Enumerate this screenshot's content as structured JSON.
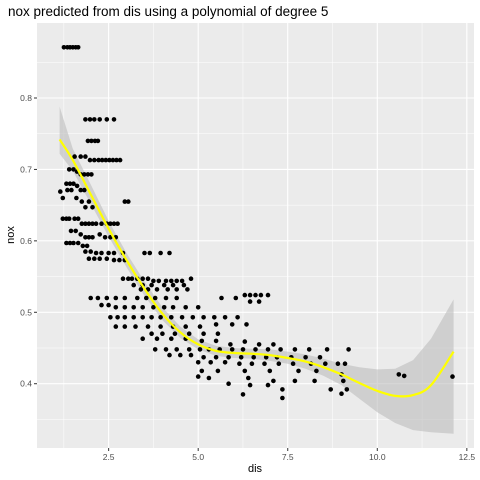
{
  "chart_data": {
    "type": "scatter",
    "title": "nox predicted from dis using a polynomial of degree 5",
    "xlabel": "dis",
    "ylabel": "nox",
    "xlim": [
      0.5,
      12.7
    ],
    "ylim": [
      0.31,
      0.905
    ],
    "x_ticks": [
      2.5,
      5.0,
      7.5,
      10.0,
      12.5
    ],
    "x_tick_labels": [
      "2.5",
      "5.0",
      "7.5",
      "10.0",
      "12.5"
    ],
    "y_ticks": [
      0.4,
      0.5,
      0.6,
      0.7,
      0.8
    ],
    "y_tick_labels": [
      "0.4",
      "0.5",
      "0.6",
      "0.7",
      "0.8"
    ],
    "grid": true,
    "colors": {
      "panel": "#ebebeb",
      "grid_major": "#ffffff",
      "points": "#000000",
      "fit_line": "#ffff00",
      "ribbon": "#bdbdbd"
    },
    "series": [
      {
        "kind": "points",
        "values": [
          [
            1.25,
            0.871
          ],
          [
            1.35,
            0.871
          ],
          [
            1.42,
            0.871
          ],
          [
            1.5,
            0.871
          ],
          [
            1.58,
            0.871
          ],
          [
            1.65,
            0.871
          ],
          [
            1.85,
            0.77
          ],
          [
            1.98,
            0.77
          ],
          [
            2.1,
            0.77
          ],
          [
            2.25,
            0.77
          ],
          [
            2.45,
            0.77
          ],
          [
            2.65,
            0.77
          ],
          [
            1.92,
            0.74
          ],
          [
            2.02,
            0.74
          ],
          [
            2.12,
            0.74
          ],
          [
            2.2,
            0.74
          ],
          [
            1.55,
            0.718
          ],
          [
            1.72,
            0.718
          ],
          [
            1.85,
            0.718
          ],
          [
            1.98,
            0.713
          ],
          [
            2.1,
            0.713
          ],
          [
            2.22,
            0.713
          ],
          [
            2.32,
            0.713
          ],
          [
            2.42,
            0.713
          ],
          [
            2.52,
            0.713
          ],
          [
            2.62,
            0.713
          ],
          [
            2.72,
            0.713
          ],
          [
            2.82,
            0.713
          ],
          [
            1.4,
            0.7
          ],
          [
            1.52,
            0.7
          ],
          [
            1.62,
            0.697
          ],
          [
            1.72,
            0.693
          ],
          [
            1.82,
            0.693
          ],
          [
            1.92,
            0.693
          ],
          [
            2.02,
            0.693
          ],
          [
            1.32,
            0.68
          ],
          [
            1.42,
            0.68
          ],
          [
            1.52,
            0.68
          ],
          [
            1.62,
            0.677
          ],
          [
            1.72,
            0.671
          ],
          [
            1.82,
            0.671
          ],
          [
            1.15,
            0.669
          ],
          [
            1.22,
            0.66
          ],
          [
            1.35,
            0.671
          ],
          [
            1.46,
            0.671
          ],
          [
            1.6,
            0.66
          ],
          [
            1.75,
            0.655
          ],
          [
            1.85,
            0.647
          ],
          [
            1.95,
            0.655
          ],
          [
            2.05,
            0.647
          ],
          [
            2.95,
            0.655
          ],
          [
            3.05,
            0.655
          ],
          [
            1.22,
            0.631
          ],
          [
            1.32,
            0.631
          ],
          [
            1.4,
            0.631
          ],
          [
            1.55,
            0.631
          ],
          [
            1.65,
            0.631
          ],
          [
            1.75,
            0.624
          ],
          [
            1.85,
            0.624
          ],
          [
            1.95,
            0.624
          ],
          [
            2.05,
            0.624
          ],
          [
            2.15,
            0.624
          ],
          [
            2.3,
            0.624
          ],
          [
            2.45,
            0.624
          ],
          [
            2.55,
            0.624
          ],
          [
            2.65,
            0.624
          ],
          [
            2.75,
            0.624
          ],
          [
            1.45,
            0.614
          ],
          [
            1.58,
            0.614
          ],
          [
            1.72,
            0.609
          ],
          [
            1.85,
            0.605
          ],
          [
            1.95,
            0.605
          ],
          [
            2.05,
            0.605
          ],
          [
            2.25,
            0.609
          ],
          [
            2.4,
            0.605
          ],
          [
            2.55,
            0.605
          ],
          [
            2.7,
            0.605
          ],
          [
            1.32,
            0.597
          ],
          [
            1.42,
            0.597
          ],
          [
            1.52,
            0.597
          ],
          [
            1.65,
            0.597
          ],
          [
            1.78,
            0.593
          ],
          [
            1.9,
            0.593
          ],
          [
            1.85,
            0.585
          ],
          [
            2.0,
            0.585
          ],
          [
            2.15,
            0.583
          ],
          [
            2.3,
            0.583
          ],
          [
            2.5,
            0.583
          ],
          [
            2.65,
            0.583
          ],
          [
            2.9,
            0.583
          ],
          [
            1.95,
            0.575
          ],
          [
            2.1,
            0.575
          ],
          [
            2.25,
            0.575
          ],
          [
            2.45,
            0.575
          ],
          [
            2.65,
            0.573
          ],
          [
            2.8,
            0.573
          ],
          [
            2.95,
            0.573
          ],
          [
            3.5,
            0.583
          ],
          [
            3.65,
            0.583
          ],
          [
            3.95,
            0.583
          ],
          [
            4.2,
            0.583
          ],
          [
            2.9,
            0.547
          ],
          [
            3.05,
            0.547
          ],
          [
            3.15,
            0.547
          ],
          [
            3.3,
            0.547
          ],
          [
            3.45,
            0.547
          ],
          [
            3.6,
            0.547
          ],
          [
            3.75,
            0.544
          ],
          [
            3.9,
            0.544
          ],
          [
            4.1,
            0.544
          ],
          [
            4.25,
            0.544
          ],
          [
            4.4,
            0.544
          ],
          [
            4.55,
            0.544
          ],
          [
            4.8,
            0.547
          ],
          [
            3.2,
            0.538
          ],
          [
            3.45,
            0.538
          ],
          [
            3.7,
            0.538
          ],
          [
            4.05,
            0.538
          ],
          [
            4.3,
            0.538
          ],
          [
            4.6,
            0.538
          ],
          [
            3.4,
            0.532
          ],
          [
            3.6,
            0.532
          ],
          [
            3.85,
            0.532
          ],
          [
            4.15,
            0.532
          ],
          [
            4.4,
            0.532
          ],
          [
            4.7,
            0.532
          ],
          [
            2.0,
            0.52
          ],
          [
            2.2,
            0.52
          ],
          [
            2.45,
            0.52
          ],
          [
            2.7,
            0.52
          ],
          [
            2.95,
            0.52
          ],
          [
            3.3,
            0.52
          ],
          [
            3.55,
            0.52
          ],
          [
            3.8,
            0.52
          ],
          [
            4.1,
            0.52
          ],
          [
            4.4,
            0.52
          ],
          [
            6.3,
            0.524
          ],
          [
            6.45,
            0.524
          ],
          [
            6.6,
            0.524
          ],
          [
            6.75,
            0.524
          ],
          [
            6.95,
            0.524
          ],
          [
            5.65,
            0.52
          ],
          [
            6.05,
            0.52
          ],
          [
            6.45,
            0.515
          ],
          [
            6.7,
            0.515
          ],
          [
            2.3,
            0.51
          ],
          [
            2.5,
            0.51
          ],
          [
            2.7,
            0.507
          ],
          [
            2.95,
            0.507
          ],
          [
            3.2,
            0.507
          ],
          [
            3.45,
            0.507
          ],
          [
            3.75,
            0.507
          ],
          [
            4.05,
            0.507
          ],
          [
            4.3,
            0.507
          ],
          [
            4.65,
            0.507
          ],
          [
            5.0,
            0.507
          ],
          [
            2.55,
            0.493
          ],
          [
            2.75,
            0.493
          ],
          [
            2.95,
            0.493
          ],
          [
            3.2,
            0.493
          ],
          [
            3.45,
            0.493
          ],
          [
            3.7,
            0.493
          ],
          [
            3.95,
            0.493
          ],
          [
            4.25,
            0.493
          ],
          [
            4.55,
            0.493
          ],
          [
            4.85,
            0.493
          ],
          [
            5.15,
            0.493
          ],
          [
            5.45,
            0.493
          ],
          [
            5.75,
            0.493
          ],
          [
            6.1,
            0.493
          ],
          [
            2.7,
            0.48
          ],
          [
            2.95,
            0.48
          ],
          [
            3.25,
            0.48
          ],
          [
            3.6,
            0.48
          ],
          [
            3.95,
            0.48
          ],
          [
            4.3,
            0.48
          ],
          [
            4.65,
            0.48
          ],
          [
            5.05,
            0.48
          ],
          [
            5.5,
            0.483
          ],
          [
            5.95,
            0.483
          ],
          [
            6.35,
            0.483
          ],
          [
            3.7,
            0.47
          ],
          [
            4.0,
            0.47
          ],
          [
            4.35,
            0.47
          ],
          [
            4.75,
            0.47
          ],
          [
            5.15,
            0.47
          ],
          [
            5.55,
            0.47
          ],
          [
            3.45,
            0.463
          ],
          [
            3.85,
            0.463
          ],
          [
            4.25,
            0.463
          ],
          [
            4.65,
            0.463
          ],
          [
            5.1,
            0.46
          ],
          [
            5.5,
            0.46
          ],
          [
            5.9,
            0.455
          ],
          [
            6.3,
            0.459
          ],
          [
            6.7,
            0.455
          ],
          [
            7.1,
            0.455
          ],
          [
            3.8,
            0.448
          ],
          [
            4.1,
            0.448
          ],
          [
            4.4,
            0.448
          ],
          [
            4.75,
            0.448
          ],
          [
            5.05,
            0.448
          ],
          [
            5.3,
            0.448
          ],
          [
            5.6,
            0.448
          ],
          [
            5.95,
            0.448
          ],
          [
            6.25,
            0.448
          ],
          [
            6.6,
            0.448
          ],
          [
            6.95,
            0.448
          ],
          [
            7.3,
            0.448
          ],
          [
            7.7,
            0.448
          ],
          [
            8.1,
            0.448
          ],
          [
            8.6,
            0.448
          ],
          [
            9.2,
            0.448
          ],
          [
            4.2,
            0.44
          ],
          [
            4.5,
            0.44
          ],
          [
            4.8,
            0.44
          ],
          [
            5.15,
            0.437
          ],
          [
            5.5,
            0.437
          ],
          [
            5.85,
            0.437
          ],
          [
            6.2,
            0.437
          ],
          [
            6.55,
            0.437
          ],
          [
            6.9,
            0.437
          ],
          [
            7.2,
            0.437
          ],
          [
            7.6,
            0.437
          ],
          [
            8.0,
            0.437
          ],
          [
            8.4,
            0.437
          ],
          [
            5.0,
            0.43
          ],
          [
            5.35,
            0.43
          ],
          [
            5.75,
            0.43
          ],
          [
            6.15,
            0.428
          ],
          [
            6.5,
            0.428
          ],
          [
            6.85,
            0.428
          ],
          [
            7.25,
            0.428
          ],
          [
            7.65,
            0.428
          ],
          [
            8.15,
            0.428
          ],
          [
            8.55,
            0.428
          ],
          [
            8.9,
            0.428
          ],
          [
            9.1,
            0.428
          ],
          [
            5.1,
            0.418
          ],
          [
            5.55,
            0.418
          ],
          [
            6.3,
            0.418
          ],
          [
            7.0,
            0.418
          ],
          [
            7.8,
            0.418
          ],
          [
            8.3,
            0.418
          ],
          [
            9.0,
            0.413
          ],
          [
            5.0,
            0.41
          ],
          [
            5.3,
            0.408
          ],
          [
            6.4,
            0.408
          ],
          [
            7.1,
            0.404
          ],
          [
            7.7,
            0.404
          ],
          [
            8.25,
            0.404
          ],
          [
            9.05,
            0.404
          ],
          [
            5.85,
            0.4
          ],
          [
            6.45,
            0.398
          ],
          [
            6.95,
            0.398
          ],
          [
            7.35,
            0.392
          ],
          [
            8.7,
            0.392
          ],
          [
            6.25,
            0.385
          ],
          [
            7.35,
            0.38
          ],
          [
            9.0,
            0.386
          ],
          [
            9.15,
            0.392
          ],
          [
            10.6,
            0.413
          ],
          [
            10.75,
            0.411
          ],
          [
            12.1,
            0.41
          ]
        ]
      },
      {
        "kind": "fit",
        "name": "",
        "x": [
          1.13,
          1.5,
          2.0,
          2.5,
          3.0,
          3.5,
          4.0,
          4.5,
          5.0,
          5.5,
          6.0,
          6.5,
          7.0,
          7.5,
          8.0,
          8.5,
          9.0,
          9.5,
          10.0,
          10.5,
          11.0,
          11.5,
          12.13
        ],
        "y": [
          0.742,
          0.713,
          0.665,
          0.617,
          0.573,
          0.533,
          0.498,
          0.472,
          0.455,
          0.446,
          0.443,
          0.442,
          0.44,
          0.436,
          0.431,
          0.423,
          0.413,
          0.401,
          0.39,
          0.383,
          0.384,
          0.398,
          0.445
        ],
        "lower": [
          0.722,
          0.698,
          0.652,
          0.606,
          0.563,
          0.523,
          0.489,
          0.464,
          0.448,
          0.439,
          0.436,
          0.435,
          0.432,
          0.428,
          0.421,
          0.411,
          0.398,
          0.379,
          0.36,
          0.345,
          0.335,
          0.332,
          0.33
        ],
        "upper": [
          0.788,
          0.729,
          0.679,
          0.628,
          0.583,
          0.543,
          0.507,
          0.48,
          0.462,
          0.453,
          0.45,
          0.449,
          0.448,
          0.445,
          0.441,
          0.435,
          0.428,
          0.423,
          0.42,
          0.421,
          0.433,
          0.463,
          0.518
        ]
      }
    ]
  }
}
